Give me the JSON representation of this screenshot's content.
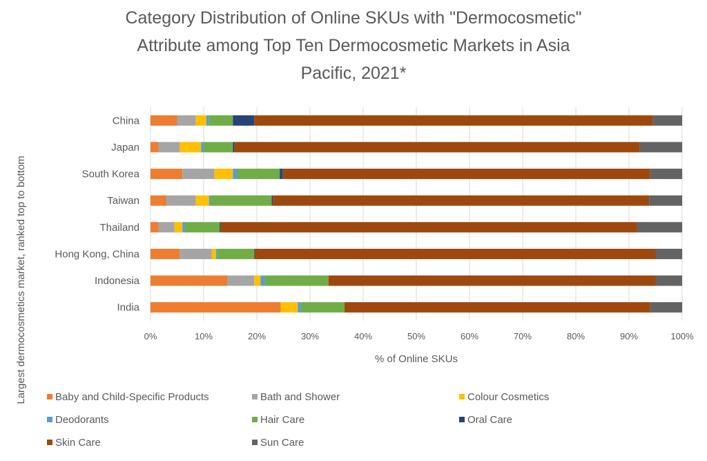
{
  "chart_data": {
    "type": "bar",
    "orientation": "horizontal",
    "stacked": true,
    "title_lines": [
      "Category Distribution of Online SKUs with \"Dermocosmetic\"",
      "Attribute among Top Ten Dermocosmetic Markets in Asia",
      "Pacific, 2021*"
    ],
    "xlabel": "% of Online SKUs",
    "ylabel": "Largest dermocosmetics market, ranked top to bottom",
    "xlim": [
      0,
      100
    ],
    "xticks": [
      "0%",
      "10%",
      "20%",
      "30%",
      "40%",
      "50%",
      "60%",
      "70%",
      "80%",
      "90%",
      "100%"
    ],
    "grid": true,
    "legend_position": "bottom",
    "categories": [
      "China",
      "Japan",
      "South Korea",
      "Taiwan",
      "Thailand",
      "Hong Kong, China",
      "Indonesia",
      "India"
    ],
    "series": [
      {
        "name": "Baby and Child-Specific Products",
        "color": "#ED7D31",
        "values": [
          5.0,
          1.5,
          6.0,
          3.0,
          1.5,
          5.5,
          14.5,
          24.5
        ]
      },
      {
        "name": "Bath and Shower",
        "color": "#A5A5A5",
        "values": [
          3.5,
          4.0,
          6.0,
          5.5,
          3.0,
          6.0,
          5.0,
          0.0
        ]
      },
      {
        "name": "Colour Cosmetics",
        "color": "#FFC000",
        "values": [
          2.0,
          4.0,
          3.5,
          2.5,
          1.5,
          0.8,
          1.2,
          3.2
        ]
      },
      {
        "name": "Deodorants",
        "color": "#5B9BD5",
        "values": [
          0.5,
          0.5,
          0.8,
          0.3,
          0.5,
          0.2,
          0.8,
          0.6
        ]
      },
      {
        "name": "Hair Care",
        "color": "#70AD47",
        "values": [
          4.5,
          5.5,
          8.0,
          11.5,
          6.5,
          7.0,
          12.0,
          8.2
        ]
      },
      {
        "name": "Oral Care",
        "color": "#264478",
        "values": [
          4.0,
          0.3,
          0.6,
          0.2,
          0.2,
          0.1,
          0.0,
          0.0
        ]
      },
      {
        "name": "Skin Care",
        "color": "#9E480E",
        "values": [
          75.0,
          76.2,
          69.1,
          70.8,
          78.3,
          75.4,
          61.5,
          57.5
        ]
      },
      {
        "name": "Sun Care",
        "color": "#636363",
        "values": [
          5.5,
          8.0,
          6.0,
          6.2,
          8.5,
          5.0,
          5.0,
          6.0
        ]
      }
    ]
  }
}
